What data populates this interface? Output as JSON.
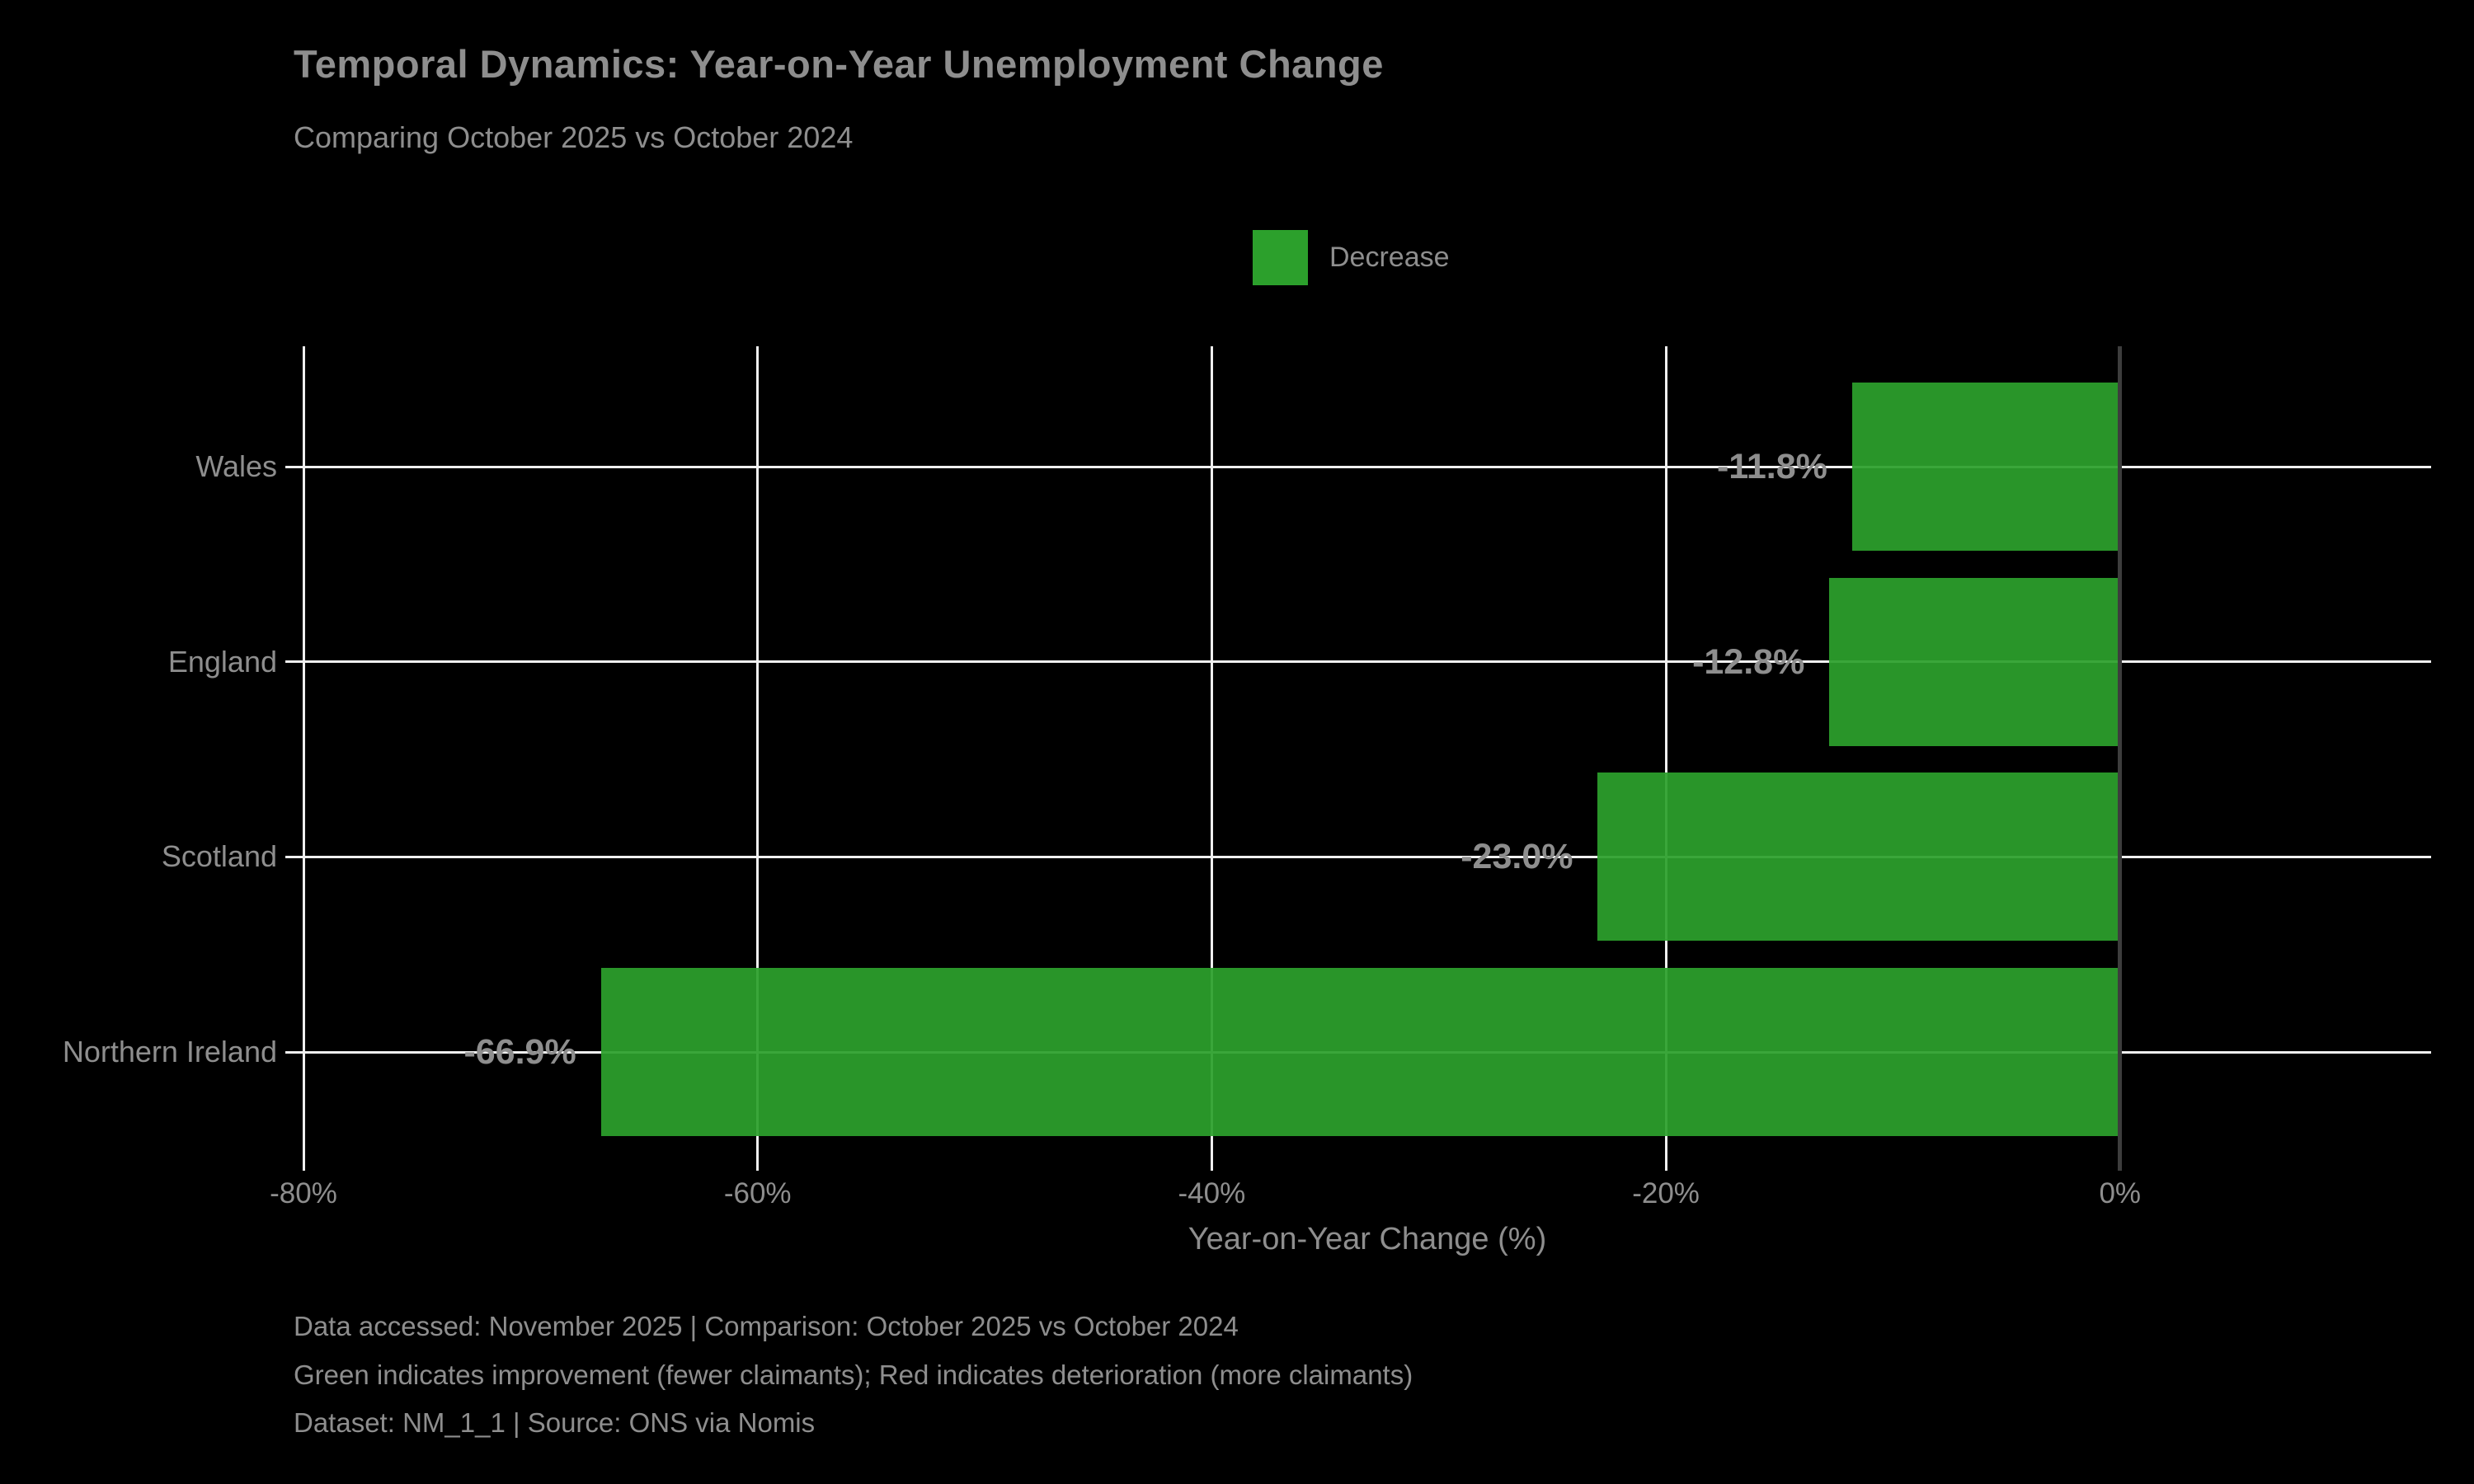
{
  "title": "Temporal Dynamics: Year-on-Year Unemployment Change",
  "subtitle": "Comparing October 2025 vs October 2024",
  "legend": {
    "items": [
      {
        "label": "Decrease",
        "color": "#2ca02c"
      }
    ]
  },
  "chart_data": {
    "type": "bar",
    "orientation": "horizontal",
    "categories": [
      "Wales",
      "England",
      "Scotland",
      "Northern Ireland"
    ],
    "values": [
      -11.8,
      -12.8,
      -23.0,
      -66.9
    ],
    "value_labels": [
      "-11.8%",
      "-12.8%",
      "-23.0%",
      "-66.9%"
    ],
    "series_name": "Decrease",
    "xlabel": "Year-on-Year Change (%)",
    "xlim": [
      -80,
      13.7
    ],
    "xticks": [
      -80,
      -60,
      -40,
      -20,
      0
    ],
    "xtick_labels": [
      "-80%",
      "-60%",
      "-40%",
      "-20%",
      "0%"
    ],
    "grid": true,
    "legend_position": "top-center",
    "bar_color": "#2ca02c",
    "zero_line_color": "#3d3d3d"
  },
  "footer": {
    "line1": "Data accessed: November 2025 | Comparison: October 2025 vs October 2024",
    "line2": "Green indicates improvement (fewer claimants); Red indicates deterioration (more claimants)",
    "line3": "Dataset: NM_1_1 | Source: ONS via Nomis"
  },
  "colors": {
    "background": "#000000",
    "text": "#8e8e8e",
    "grid": "#f0f0f0",
    "zero_line": "#3d3d3d",
    "bar": "#2ca02c"
  }
}
